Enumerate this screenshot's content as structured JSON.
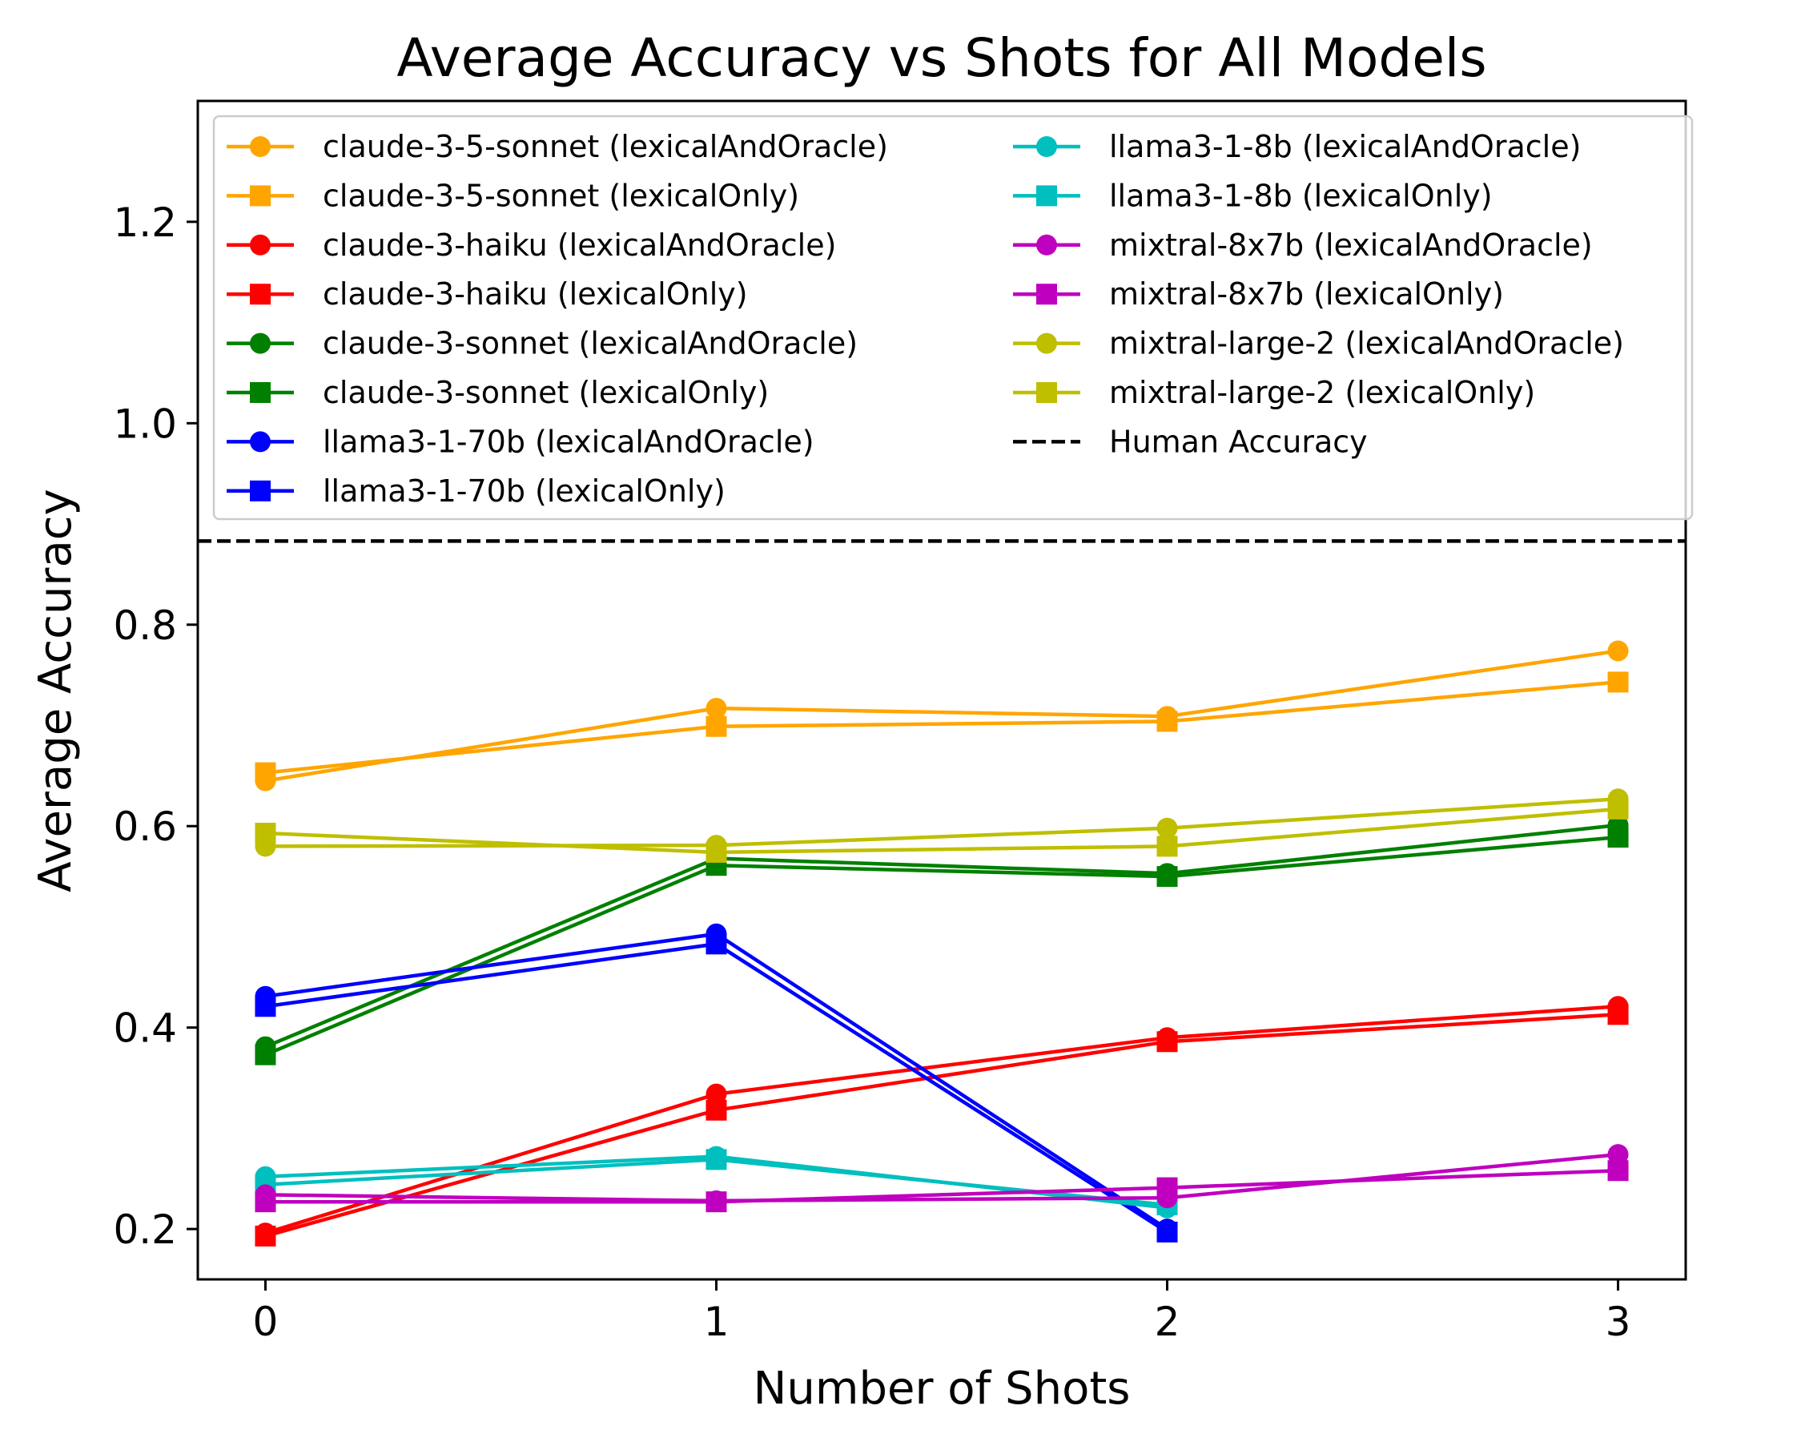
{
  "chart_data": {
    "type": "line",
    "title": "Average Accuracy vs Shots for All Models",
    "xlabel": "Number of Shots",
    "ylabel": "Average Accuracy",
    "x": [
      0,
      1,
      2,
      3
    ],
    "xlim": [
      -0.15,
      3.15
    ],
    "ylim": [
      0.15,
      1.32
    ],
    "xticks": [
      "0",
      "1",
      "2",
      "3"
    ],
    "yticks": [
      "0.2",
      "0.4",
      "0.6",
      "0.8",
      "1.0",
      "1.2"
    ],
    "ytick_values": [
      0.2,
      0.4,
      0.6,
      0.8,
      1.0,
      1.2
    ],
    "legend_position": "upper",
    "series": [
      {
        "name": "claude-3-5-sonnet (lexicalAndOracle)",
        "color": "#FFA500",
        "marker": "circle",
        "x": [
          0,
          1,
          2,
          3
        ],
        "values": [
          0.645,
          0.717,
          0.709,
          0.774
        ]
      },
      {
        "name": "claude-3-5-sonnet (lexicalOnly)",
        "color": "#FFA500",
        "marker": "square",
        "x": [
          0,
          1,
          2,
          3
        ],
        "values": [
          0.653,
          0.699,
          0.704,
          0.743
        ]
      },
      {
        "name": "claude-3-haiku (lexicalAndOracle)",
        "color": "#FF0000",
        "marker": "circle",
        "x": [
          0,
          1,
          2,
          3
        ],
        "values": [
          0.196,
          0.334,
          0.39,
          0.421
        ]
      },
      {
        "name": "claude-3-haiku (lexicalOnly)",
        "color": "#FF0000",
        "marker": "square",
        "x": [
          0,
          1,
          2,
          3
        ],
        "values": [
          0.193,
          0.318,
          0.386,
          0.413
        ]
      },
      {
        "name": "claude-3-sonnet (lexicalAndOracle)",
        "color": "#008000",
        "marker": "circle",
        "x": [
          0,
          1,
          2,
          3
        ],
        "values": [
          0.381,
          0.568,
          0.553,
          0.601
        ]
      },
      {
        "name": "claude-3-sonnet (lexicalOnly)",
        "color": "#008000",
        "marker": "square",
        "x": [
          0,
          1,
          2,
          3
        ],
        "values": [
          0.373,
          0.561,
          0.55,
          0.589
        ]
      },
      {
        "name": "llama3-1-70b (lexicalAndOracle)",
        "color": "#0000FF",
        "marker": "circle",
        "x": [
          0,
          1,
          2
        ],
        "values": [
          0.431,
          0.493,
          0.2
        ]
      },
      {
        "name": "llama3-1-70b (lexicalOnly)",
        "color": "#0000FF",
        "marker": "square",
        "x": [
          0,
          1,
          2
        ],
        "values": [
          0.421,
          0.483,
          0.197
        ]
      },
      {
        "name": "llama3-1-8b (lexicalAndOracle)",
        "color": "#00BFBF",
        "marker": "circle",
        "x": [
          0,
          1,
          2
        ],
        "values": [
          0.252,
          0.272,
          0.221
        ]
      },
      {
        "name": "llama3-1-8b (lexicalOnly)",
        "color": "#00BFBF",
        "marker": "square",
        "x": [
          0,
          1,
          2
        ],
        "values": [
          0.244,
          0.269,
          0.224
        ]
      },
      {
        "name": "mixtral-8x7b (lexicalAndOracle)",
        "color": "#BF00BF",
        "marker": "circle",
        "x": [
          0,
          1,
          2,
          3
        ],
        "values": [
          0.234,
          0.228,
          0.231,
          0.274
        ]
      },
      {
        "name": "mixtral-8x7b (lexicalOnly)",
        "color": "#BF00BF",
        "marker": "square",
        "x": [
          0,
          1,
          2,
          3
        ],
        "values": [
          0.227,
          0.227,
          0.241,
          0.258
        ]
      },
      {
        "name": "mixtral-large-2 (lexicalAndOracle)",
        "color": "#BFBF00",
        "marker": "circle",
        "x": [
          0,
          1,
          2,
          3
        ],
        "values": [
          0.58,
          0.581,
          0.598,
          0.627
        ]
      },
      {
        "name": "mixtral-large-2 (lexicalOnly)",
        "color": "#BFBF00",
        "marker": "square",
        "x": [
          0,
          1,
          2,
          3
        ],
        "values": [
          0.593,
          0.574,
          0.58,
          0.617
        ]
      }
    ],
    "hlines": [
      {
        "name": "Human Accuracy",
        "value": 0.883,
        "color": "#000000",
        "style": "dashed"
      }
    ]
  }
}
